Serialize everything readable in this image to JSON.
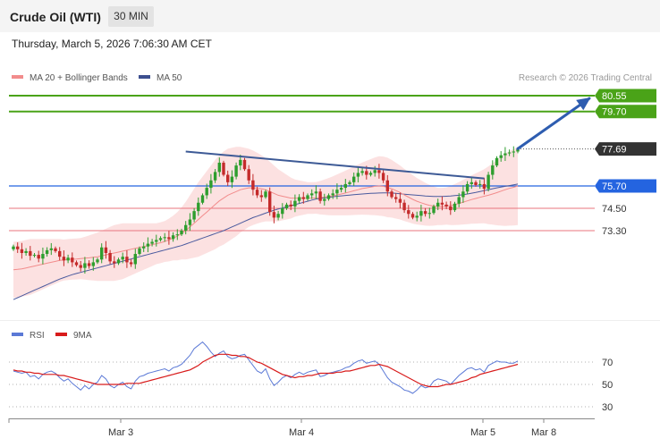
{
  "header": {
    "instrument": "Crude Oil (WTI)",
    "timeframe": "30 MIN",
    "datetime": "Thursday, March 5, 2026 7:06:30 AM CET"
  },
  "legend": {
    "ma20": "MA 20 + Bollinger Bands",
    "ma50": "MA 50",
    "copyright": "Research © 2026 Trading Central",
    "rsi": "RSI",
    "rsi_ma": "9MA"
  },
  "colors": {
    "resistance": "#4aa318",
    "support": "#2464e0",
    "level": "#e8757e",
    "price": "#333333",
    "bollinger": "#fbd7d7",
    "ma20": "#f28c8c",
    "ma50": "#4a5a9e",
    "trendline": "#3d5a96",
    "arrow": "#2e5db0",
    "bull": "#2e9e2e",
    "bear": "#c42b2b",
    "rsi": "#5b79d6",
    "rsi_ma": "#d81b1b"
  },
  "chart_data": [
    {
      "type": "candlestick",
      "title": "Crude Oil (WTI)",
      "timeframe": "30 MIN",
      "x_ticks": [
        "Mar 3",
        "Mar 4",
        "Mar 5",
        "Mar 8"
      ],
      "current_price": 77.69,
      "levels": [
        {
          "value": 80.55,
          "label": "80.55",
          "kind": "resistance"
        },
        {
          "value": 79.7,
          "label": "79.70",
          "kind": "resistance"
        },
        {
          "value": 77.69,
          "label": "77.69",
          "kind": "price"
        },
        {
          "value": 75.7,
          "label": "75.70",
          "kind": "support"
        },
        {
          "value": 74.5,
          "label": "74.50",
          "kind": "level"
        },
        {
          "value": 73.3,
          "label": "73.30",
          "kind": "level"
        }
      ],
      "close": [
        72.45,
        72.3,
        72.1,
        72.2,
        71.95,
        72.0,
        71.8,
        72.05,
        72.25,
        72.35,
        72.2,
        71.9,
        71.7,
        71.85,
        71.6,
        71.45,
        71.3,
        71.55,
        71.4,
        71.6,
        71.75,
        72.4,
        72.1,
        71.65,
        71.55,
        71.75,
        71.9,
        71.6,
        71.5,
        72.05,
        72.35,
        72.45,
        72.6,
        72.7,
        72.8,
        72.9,
        72.95,
        72.85,
        73.05,
        73.1,
        73.3,
        73.6,
        73.9,
        74.35,
        74.8,
        75.2,
        75.6,
        76.0,
        76.45,
        76.95,
        76.3,
        75.9,
        76.2,
        76.8,
        77.1,
        76.6,
        76.0,
        75.5,
        75.2,
        75.1,
        75.4,
        74.3,
        74.0,
        74.2,
        74.5,
        74.7,
        74.6,
        74.9,
        75.1,
        75.0,
        75.2,
        75.3,
        75.4,
        74.9,
        75.0,
        75.2,
        75.3,
        75.5,
        75.6,
        75.8,
        75.9,
        76.2,
        76.4,
        76.5,
        76.3,
        76.4,
        76.55,
        76.4,
        76.0,
        75.4,
        75.1,
        75.0,
        74.8,
        74.4,
        74.2,
        74.0,
        74.1,
        74.35,
        74.2,
        74.25,
        74.6,
        74.8,
        74.7,
        74.6,
        74.4,
        74.75,
        75.1,
        75.4,
        75.8,
        75.9,
        75.75,
        75.8,
        75.55,
        76.3,
        76.8,
        77.2,
        77.35,
        77.45,
        77.5,
        77.55,
        77.69
      ],
      "ma20": [
        71.2,
        71.22,
        71.25,
        71.3,
        71.35,
        71.4,
        71.45,
        71.5,
        71.55,
        71.6,
        71.65,
        71.7,
        71.72,
        71.75,
        71.77,
        71.78,
        71.8,
        71.82,
        71.84,
        71.87,
        71.9,
        71.95,
        72.0,
        72.05,
        72.1,
        72.15,
        72.2,
        72.25,
        72.3,
        72.35,
        72.4,
        72.45,
        72.5,
        72.55,
        72.6,
        72.65,
        72.72,
        72.8,
        72.9,
        73.0,
        73.15,
        73.3,
        73.5,
        73.7,
        73.9,
        74.1,
        74.3,
        74.5,
        74.7,
        74.9,
        75.05,
        75.2,
        75.3,
        75.4,
        75.5,
        75.55,
        75.6,
        75.6,
        75.58,
        75.55,
        75.5,
        75.4,
        75.3,
        75.2,
        75.15,
        75.1,
        75.05,
        75.05,
        75.05,
        75.05,
        75.05,
        75.05,
        75.06,
        75.07,
        75.1,
        75.13,
        75.17,
        75.22,
        75.27,
        75.32,
        75.38,
        75.44,
        75.5,
        75.56,
        75.6,
        75.64,
        75.68,
        75.7,
        75.68,
        75.62,
        75.55,
        75.45,
        75.35,
        75.22,
        75.1,
        74.98,
        74.88,
        74.8,
        74.72,
        74.66,
        74.62,
        74.6,
        74.6,
        74.62,
        74.65,
        74.7,
        74.76,
        74.83,
        74.9,
        74.97,
        75.03,
        75.09,
        75.15,
        75.2,
        75.27,
        75.34,
        75.42,
        75.5,
        75.57,
        75.63,
        75.7
      ],
      "ma50": [
        69.6,
        69.7,
        69.8,
        69.9,
        70.0,
        70.1,
        70.2,
        70.3,
        70.4,
        70.5,
        70.6,
        70.7,
        70.78,
        70.86,
        70.94,
        71.0,
        71.06,
        71.12,
        71.18,
        71.24,
        71.3,
        71.36,
        71.42,
        71.48,
        71.54,
        71.6,
        71.66,
        71.72,
        71.78,
        71.84,
        71.9,
        71.96,
        72.02,
        72.08,
        72.14,
        72.2,
        72.26,
        72.32,
        72.38,
        72.44,
        72.5,
        72.58,
        72.66,
        72.74,
        72.82,
        72.9,
        72.98,
        73.06,
        73.14,
        73.22,
        73.3,
        73.4,
        73.5,
        73.6,
        73.7,
        73.8,
        73.9,
        74.0,
        74.08,
        74.16,
        74.24,
        74.32,
        74.4,
        74.46,
        74.52,
        74.58,
        74.64,
        74.7,
        74.76,
        74.82,
        74.88,
        74.94,
        75.0,
        75.03,
        75.06,
        75.09,
        75.12,
        75.15,
        75.17,
        75.19,
        75.21,
        75.23,
        75.25,
        75.27,
        75.29,
        75.3,
        75.31,
        75.32,
        75.33,
        75.33,
        75.32,
        75.3,
        75.28,
        75.26,
        75.24,
        75.22,
        75.2,
        75.18,
        75.16,
        75.15,
        75.14,
        75.14,
        75.14,
        75.15,
        75.16,
        75.18,
        75.2,
        75.23,
        75.27,
        75.31,
        75.35,
        75.4,
        75.45,
        75.5,
        75.55,
        75.6,
        75.64,
        75.68,
        75.72,
        75.76,
        75.8
      ],
      "band_width": [
        1.5,
        1.5,
        1.5,
        1.5,
        1.5,
        1.45,
        1.4,
        1.35,
        1.3,
        1.25,
        1.2,
        1.15,
        1.1,
        1.1,
        1.1,
        1.1,
        1.1,
        1.15,
        1.2,
        1.25,
        1.3,
        1.35,
        1.4,
        1.45,
        1.5,
        1.5,
        1.5,
        1.45,
        1.4,
        1.35,
        1.3,
        1.25,
        1.2,
        1.15,
        1.1,
        1.1,
        1.1,
        1.15,
        1.2,
        1.3,
        1.4,
        1.55,
        1.7,
        1.85,
        2.0,
        2.1,
        2.2,
        2.3,
        2.4,
        2.45,
        2.5,
        2.5,
        2.45,
        2.4,
        2.3,
        2.2,
        2.1,
        2.0,
        1.9,
        1.8,
        1.7,
        1.6,
        1.5,
        1.4,
        1.3,
        1.2,
        1.1,
        1.0,
        0.95,
        0.9,
        0.85,
        0.85,
        0.85,
        0.9,
        0.95,
        1.0,
        1.05,
        1.1,
        1.15,
        1.2,
        1.25,
        1.3,
        1.35,
        1.4,
        1.45,
        1.5,
        1.55,
        1.6,
        1.6,
        1.6,
        1.55,
        1.5,
        1.45,
        1.4,
        1.35,
        1.3,
        1.25,
        1.2,
        1.15,
        1.1,
        1.05,
        1.0,
        1.0,
        1.0,
        1.05,
        1.1,
        1.15,
        1.2,
        1.25,
        1.3,
        1.35,
        1.4,
        1.45,
        1.55,
        1.65,
        1.75,
        1.85,
        1.95,
        2.0,
        2.05,
        2.1
      ],
      "trendline": {
        "from": {
          "index": 41,
          "value": 77.55
        },
        "to": {
          "index": 112,
          "value": 76.1
        }
      },
      "projection_arrow": {
        "from": {
          "index": 120,
          "value": 77.7
        },
        "to": {
          "index": 137,
          "value": 80.4
        }
      }
    },
    {
      "type": "line",
      "title": "RSI",
      "series": [
        {
          "name": "RSI",
          "values": [
            62,
            61,
            60,
            61,
            57,
            58,
            55,
            59,
            61,
            62,
            60,
            56,
            53,
            55,
            51,
            48,
            45,
            49,
            46,
            50,
            52,
            58,
            55,
            49,
            47,
            50,
            52,
            48,
            46,
            53,
            57,
            58,
            60,
            61,
            62,
            63,
            64,
            62,
            65,
            66,
            68,
            72,
            76,
            82,
            85,
            88,
            84,
            79,
            75,
            78,
            80,
            75,
            73,
            74,
            76,
            77,
            72,
            67,
            62,
            60,
            64,
            55,
            49,
            52,
            56,
            58,
            56,
            59,
            61,
            59,
            61,
            62,
            63,
            57,
            58,
            60,
            61,
            62,
            63,
            65,
            66,
            69,
            71,
            72,
            69,
            70,
            71,
            68,
            62,
            56,
            52,
            50,
            48,
            45,
            44,
            42,
            45,
            49,
            47,
            48,
            53,
            55,
            54,
            53,
            50,
            54,
            58,
            61,
            64,
            65,
            63,
            64,
            61,
            67,
            69,
            71,
            70,
            70,
            69,
            69,
            71
          ]
        },
        {
          "name": "9MA",
          "values": [
            63,
            62,
            62,
            61,
            61,
            60,
            60,
            59,
            59,
            59,
            59,
            58,
            58,
            57,
            56,
            55,
            54,
            53,
            52,
            51,
            50,
            50,
            50,
            50,
            50,
            50,
            50,
            51,
            51,
            51,
            51,
            52,
            53,
            54,
            55,
            56,
            57,
            58,
            59,
            60,
            61,
            62,
            63,
            65,
            67,
            70,
            72,
            74,
            76,
            77,
            77,
            77,
            76,
            76,
            75,
            75,
            74,
            72,
            70,
            69,
            67,
            65,
            63,
            61,
            59,
            58,
            57,
            56,
            57,
            57,
            58,
            58,
            59,
            60,
            60,
            60,
            60,
            61,
            61,
            62,
            62,
            63,
            64,
            65,
            66,
            67,
            67,
            68,
            67,
            66,
            64,
            62,
            60,
            58,
            56,
            54,
            52,
            50,
            49,
            48,
            48,
            48,
            49,
            50,
            50,
            51,
            52,
            53,
            54,
            56,
            57,
            59,
            60,
            61,
            62,
            63,
            64,
            65,
            66,
            67,
            68
          ]
        }
      ],
      "y_ticks": [
        70,
        50,
        30
      ],
      "ylim": [
        25,
        80
      ]
    }
  ]
}
